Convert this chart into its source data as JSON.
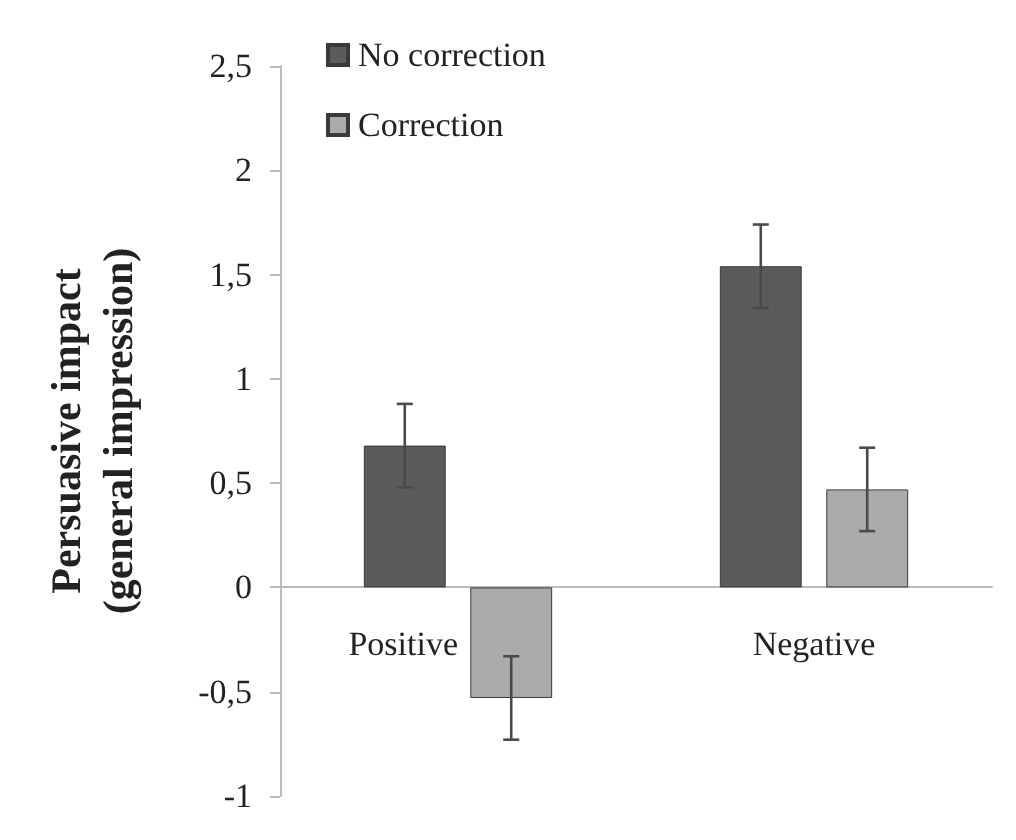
{
  "chart_data": {
    "type": "bar",
    "ylabel": "Persuasive impact\n(general impression)",
    "categories": [
      "Positive",
      "Negative"
    ],
    "series": [
      {
        "name": "No correction",
        "color": "#5b5b5d",
        "values": [
          0.68,
          1.54
        ],
        "errors": [
          0.2,
          0.2
        ]
      },
      {
        "name": "Correction",
        "color": "#ababab",
        "values": [
          -0.53,
          0.47
        ],
        "errors": [
          0.2,
          0.2
        ]
      }
    ],
    "ylim": [
      -1,
      2.5
    ],
    "yticks": [
      {
        "value": -1,
        "label": "-1"
      },
      {
        "value": -0.5,
        "label": "-0,5"
      },
      {
        "value": 0,
        "label": "0"
      },
      {
        "value": 0.5,
        "label": "0,5"
      },
      {
        "value": 1,
        "label": "1"
      },
      {
        "value": 1.5,
        "label": "1,5"
      },
      {
        "value": 2,
        "label": "2"
      },
      {
        "value": 2.5,
        "label": "2,5"
      }
    ],
    "grid": false,
    "legend": "top left"
  }
}
